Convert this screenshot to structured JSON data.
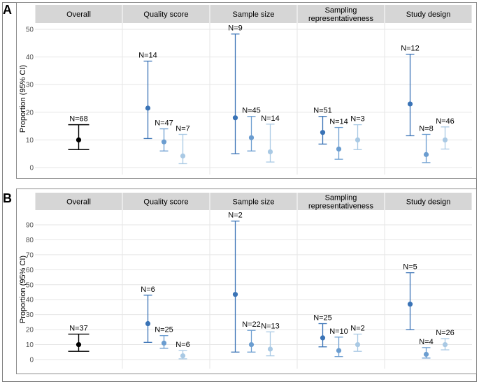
{
  "panels": [
    {
      "label": "A",
      "ylabel": "Proportion (95% CI)",
      "yticks": [
        0,
        10,
        20,
        30,
        40,
        50
      ],
      "ylim": [
        -2,
        52.5
      ]
    },
    {
      "label": "B",
      "ylabel": "Proportion (95% CI)",
      "yticks": [
        0,
        10,
        20,
        30,
        40,
        50,
        60,
        70,
        80,
        90
      ],
      "ylim": [
        -3,
        96
      ]
    }
  ],
  "chart_data": [
    {
      "type": "scatter",
      "title": "A",
      "ylabel": "Proportion (95% CI)",
      "ylim": [
        -2,
        52.5
      ],
      "facets": [
        {
          "name": "Overall",
          "points": [
            {
              "n": "N=68",
              "value": 10,
              "lower": 6.5,
              "upper": 15.5,
              "level": 0
            }
          ]
        },
        {
          "name": "Quality score",
          "points": [
            {
              "n": "N=14",
              "value": 21.5,
              "lower": 10.5,
              "upper": 38.5,
              "level": 1
            },
            {
              "n": "N=47",
              "value": 9.3,
              "lower": 6,
              "upper": 14,
              "level": 2
            },
            {
              "n": "N=7",
              "value": 4.2,
              "lower": 1.4,
              "upper": 12,
              "level": 3
            }
          ]
        },
        {
          "name": "Sample size",
          "points": [
            {
              "n": "N=9",
              "value": 18,
              "lower": 5,
              "upper": 48.3,
              "level": 1
            },
            {
              "n": "N=45",
              "value": 10.8,
              "lower": 6,
              "upper": 18.5,
              "level": 2
            },
            {
              "n": "N=14",
              "value": 5.7,
              "lower": 2,
              "upper": 15.7,
              "level": 3
            }
          ]
        },
        {
          "name": "Sampling representativeness",
          "points": [
            {
              "n": "N=51",
              "value": 12.7,
              "lower": 8.5,
              "upper": 18.5,
              "level": 1
            },
            {
              "n": "N=14",
              "value": 6.7,
              "lower": 3,
              "upper": 14.5,
              "level": 2
            },
            {
              "n": "N=3",
              "value": 10,
              "lower": 6.5,
              "upper": 15.5,
              "level": 3
            }
          ]
        },
        {
          "name": "Study design",
          "points": [
            {
              "n": "N=12",
              "value": 23,
              "lower": 11.5,
              "upper": 41,
              "level": 1
            },
            {
              "n": "N=8",
              "value": 4.7,
              "lower": 1.8,
              "upper": 12,
              "level": 2
            },
            {
              "n": "N=46",
              "value": 10,
              "lower": 6.7,
              "upper": 14.7,
              "level": 3
            }
          ]
        }
      ]
    },
    {
      "type": "scatter",
      "title": "B",
      "ylabel": "Proportion (95% CI)",
      "ylim": [
        -3,
        96
      ],
      "facets": [
        {
          "name": "Overall",
          "points": [
            {
              "n": "N=37",
              "value": 10,
              "lower": 5.5,
              "upper": 17,
              "level": 0
            }
          ]
        },
        {
          "name": "Quality score",
          "points": [
            {
              "n": "N=6",
              "value": 24,
              "lower": 11.5,
              "upper": 43,
              "level": 1
            },
            {
              "n": "N=25",
              "value": 11,
              "lower": 7.5,
              "upper": 16,
              "level": 2
            },
            {
              "n": "N=6",
              "value": 2.5,
              "lower": 0.5,
              "upper": 6,
              "level": 3
            }
          ]
        },
        {
          "name": "Sample size",
          "points": [
            {
              "n": "N=2",
              "value": 43.5,
              "lower": 5,
              "upper": 92.5,
              "level": 1
            },
            {
              "n": "N=22",
              "value": 10,
              "lower": 5,
              "upper": 19.5,
              "level": 2
            },
            {
              "n": "N=13",
              "value": 7,
              "lower": 2.5,
              "upper": 18.5,
              "level": 3
            }
          ]
        },
        {
          "name": "Sampling representativeness",
          "points": [
            {
              "n": "N=25",
              "value": 14.5,
              "lower": 8.5,
              "upper": 24,
              "level": 1
            },
            {
              "n": "N=10",
              "value": 6,
              "lower": 2,
              "upper": 15,
              "level": 2
            },
            {
              "n": "N=2",
              "value": 10,
              "lower": 5.5,
              "upper": 17,
              "level": 3
            }
          ]
        },
        {
          "name": "Study design",
          "points": [
            {
              "n": "N=5",
              "value": 37,
              "lower": 20,
              "upper": 58,
              "level": 1
            },
            {
              "n": "N=4",
              "value": 3.5,
              "lower": 1,
              "upper": 8,
              "level": 2
            },
            {
              "n": "N=26",
              "value": 10,
              "lower": 6.5,
              "upper": 14,
              "level": 3
            }
          ]
        }
      ]
    }
  ],
  "colors": {
    "level0": "#000000",
    "level1": "#3a73b6",
    "level2": "#6b9dd0",
    "level3": "#a9c9e4",
    "strip": "#d6d6d6",
    "grid": "#e6e6e6",
    "text": "#000000",
    "axis_text": "#4d4d4d"
  }
}
